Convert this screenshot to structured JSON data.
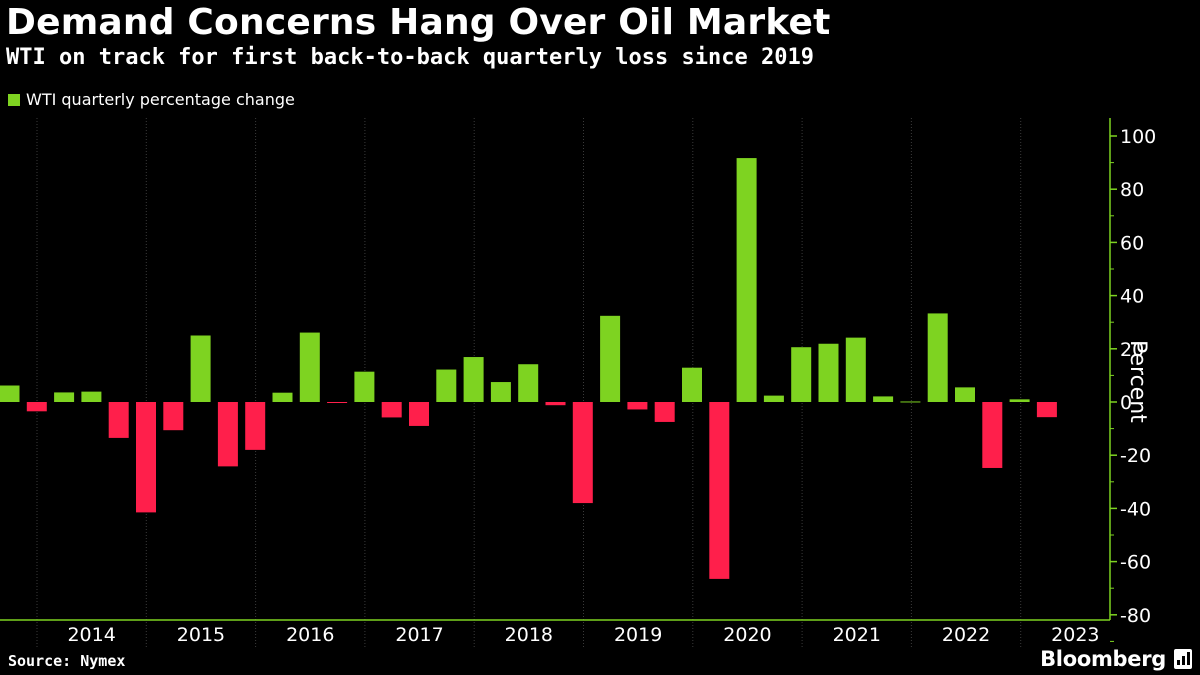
{
  "title": "Demand Concerns Hang Over Oil Market",
  "subtitle": "WTI on track for first back-to-back quarterly loss since 2019",
  "source": "Source: Nymex",
  "brand": "Bloomberg",
  "colors": {
    "positive": "#7ed321",
    "negative": "#ff1f4b",
    "axis": "#7ed321",
    "grid": "#3a3a3a",
    "background": "#000000",
    "text": "#ffffff"
  },
  "chart_data": {
    "type": "bar",
    "series": [
      {
        "name": "WTI quarterly percentage change",
        "x": [
          "2013 Q4",
          "2014 Q1",
          "2014 Q2",
          "2014 Q3",
          "2014 Q4",
          "2015 Q1",
          "2015 Q2",
          "2015 Q3",
          "2015 Q4",
          "2016 Q1",
          "2016 Q2",
          "2016 Q3",
          "2016 Q4",
          "2017 Q1",
          "2017 Q2",
          "2017 Q3",
          "2017 Q4",
          "2018 Q1",
          "2018 Q2",
          "2018 Q3",
          "2018 Q4",
          "2019 Q1",
          "2019 Q2",
          "2019 Q3",
          "2019 Q4",
          "2020 Q1",
          "2020 Q2",
          "2020 Q3",
          "2020 Q4",
          "2021 Q1",
          "2021 Q2",
          "2021 Q3",
          "2021 Q4",
          "2022 Q1",
          "2022 Q2",
          "2022 Q3",
          "2022 Q4",
          "2023 Q1",
          "2023 Q2"
        ],
        "values": [
          6.2,
          -3.5,
          3.6,
          3.9,
          -13.5,
          -41.5,
          -10.6,
          25.0,
          -24.2,
          -18.0,
          3.5,
          26.1,
          -0.2,
          11.4,
          -5.8,
          -9.0,
          12.2,
          16.9,
          7.5,
          14.2,
          -1.2,
          -38.0,
          32.4,
          -2.8,
          -7.5,
          12.9,
          -66.5,
          91.7,
          2.4,
          20.6,
          21.9,
          24.2,
          2.1,
          0.2,
          33.3,
          5.5,
          -24.8,
          1.0,
          -5.7
        ]
      }
    ],
    "x_axis_labels": [
      "2014",
      "2015",
      "2016",
      "2017",
      "2018",
      "2019",
      "2020",
      "2021",
      "2022",
      "2023"
    ],
    "yticks": [
      "100",
      "80",
      "60",
      "40",
      "20",
      "0",
      "-20",
      "-40",
      "-60",
      "-80"
    ],
    "ylabel": "Percent",
    "xlabel": "",
    "ylim": [
      -85,
      108
    ],
    "grid": "vertical at year boundaries",
    "legend": "top-left"
  }
}
